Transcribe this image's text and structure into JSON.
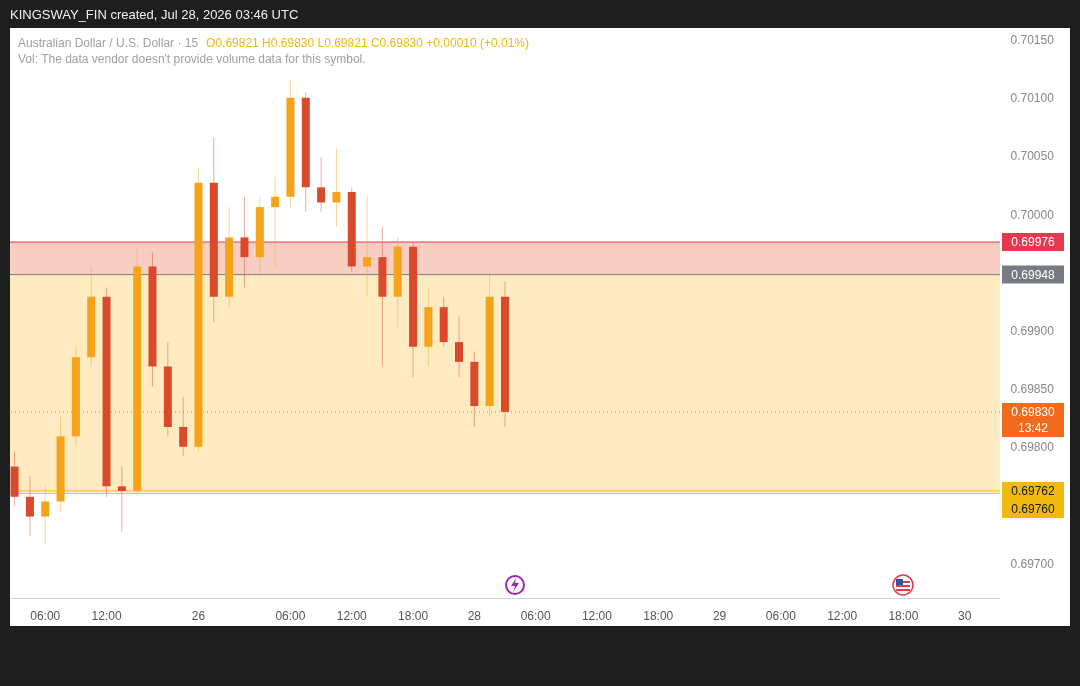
{
  "chart_data": {
    "type": "candlestick",
    "title": "Australian Dollar / U.S. Dollar · 15",
    "subtitle": "O0.69821 H0.69830 L0.69821 C0.69830 +0.00010 (+0.01%)",
    "annotations": [
      "KINGSWAY_FIN created, Jul 28, 2026 03:46 UTC",
      "Vol: The data vendor doesn't provide volume data for this symbol."
    ],
    "categories": [
      null,
      null,
      "06:00",
      null,
      null,
      null,
      "12:00",
      null,
      null,
      null,
      null,
      null,
      "26",
      null,
      null,
      null,
      null,
      null,
      "06:00",
      null,
      null,
      null,
      "12:00",
      null,
      null,
      null,
      "18:00",
      null,
      null,
      null,
      "28",
      null,
      null,
      null,
      "06:00",
      null,
      null,
      null,
      "12:00",
      null,
      null,
      null,
      "18:00",
      null,
      null,
      null,
      "29",
      null,
      null,
      null,
      "06:00",
      null,
      null,
      null,
      "12:00",
      null,
      null,
      null,
      "18:00",
      null,
      null,
      null,
      "30",
      null,
      null
    ],
    "ohlc": [
      [
        0.69783,
        0.69796,
        0.69749,
        0.69757
      ],
      [
        0.69757,
        0.69775,
        0.69723,
        0.6974
      ],
      [
        0.6974,
        0.69766,
        0.69716,
        0.69753
      ],
      [
        0.69753,
        0.69826,
        0.69745,
        0.69809
      ],
      [
        0.69809,
        0.69886,
        0.698,
        0.69877
      ],
      [
        0.69877,
        0.69955,
        0.69869,
        0.69929
      ],
      [
        0.69929,
        0.69937,
        0.69757,
        0.69766
      ],
      [
        0.69766,
        0.69783,
        0.69727,
        0.69762
      ],
      [
        0.69762,
        0.69972,
        0.69758,
        0.69955
      ],
      [
        0.69955,
        0.69967,
        0.69852,
        0.69869
      ],
      [
        0.69869,
        0.6989,
        0.69809,
        0.69817
      ],
      [
        0.69817,
        0.69843,
        0.69792,
        0.698
      ],
      [
        0.698,
        0.7004,
        0.69796,
        0.70027
      ],
      [
        0.70027,
        0.70066,
        0.69907,
        0.69929
      ],
      [
        0.69929,
        0.70006,
        0.6992,
        0.6998
      ],
      [
        0.6998,
        0.70015,
        0.69937,
        0.69963
      ],
      [
        0.69963,
        0.70015,
        0.69946,
        0.70006
      ],
      [
        0.70006,
        0.70032,
        0.69955,
        0.70015
      ],
      [
        0.70015,
        0.70115,
        0.70006,
        0.701
      ],
      [
        0.701,
        0.70105,
        0.70002,
        0.70023
      ],
      [
        0.70023,
        0.70049,
        0.70002,
        0.7001
      ],
      [
        0.7001,
        0.70057,
        0.69989,
        0.70019
      ],
      [
        0.70019,
        0.70023,
        0.6995,
        0.69955
      ],
      [
        0.69955,
        0.70015,
        0.69929,
        0.69963
      ],
      [
        0.69963,
        0.69989,
        0.69869,
        0.69929
      ],
      [
        0.69929,
        0.6998,
        0.69903,
        0.69972
      ],
      [
        0.69972,
        0.69976,
        0.6986,
        0.69886
      ],
      [
        0.69886,
        0.69937,
        0.69869,
        0.6992
      ],
      [
        0.6992,
        0.69929,
        0.69886,
        0.6989
      ],
      [
        0.6989,
        0.69912,
        0.6986,
        0.69873
      ],
      [
        0.69873,
        0.69882,
        0.69817,
        0.69835
      ],
      [
        0.69835,
        0.6995,
        0.69826,
        0.69929
      ],
      [
        0.69929,
        0.69942,
        0.69817,
        0.6983
      ],
      null,
      null,
      null,
      null,
      null,
      null,
      null,
      null,
      null,
      null,
      null,
      null,
      null,
      null,
      null,
      null,
      null,
      null,
      null,
      null,
      null,
      null,
      null,
      null,
      null,
      null,
      null,
      null,
      null,
      null,
      null,
      null
    ],
    "colors": [
      "#d84a2b",
      "#d84a2b",
      "#f5a31b",
      "#f5a31b",
      "#f5a31b",
      "#f5a31b",
      "#d84a2b",
      "#d84a2b",
      "#f5a31b",
      "#d84a2b",
      "#d84a2b",
      "#d84a2b",
      "#f5a31b",
      "#d84a2b",
      "#f5a31b",
      "#d84a2b",
      "#f5a31b",
      "#f5a31b",
      "#f5a31b",
      "#d84a2b",
      "#d84a2b",
      "#f5a31b",
      "#d84a2b",
      "#f5a31b",
      "#d84a2b",
      "#f5a31b",
      "#d84a2b",
      "#f5a31b",
      "#d84a2b",
      "#d84a2b",
      "#d84a2b",
      "#f5a31b",
      "#d84a2b",
      null,
      null,
      null,
      null,
      null,
      null,
      null,
      null,
      null,
      null,
      null,
      null,
      null,
      null,
      null,
      null,
      null,
      null,
      null,
      null,
      null,
      null,
      null,
      null,
      null,
      null,
      null,
      null,
      null,
      null,
      null,
      null
    ],
    "ylim": [
      0.6967,
      0.7016
    ],
    "yticks": [
      {
        "value": 0.697,
        "label": "0.69700"
      },
      {
        "value": 0.698,
        "label": "0.69800"
      },
      {
        "value": 0.6985,
        "label": "0.69850"
      },
      {
        "value": 0.699,
        "label": "0.69900"
      },
      {
        "value": 0.7,
        "label": "0.70000"
      },
      {
        "value": 0.7005,
        "label": "0.70050"
      },
      {
        "value": 0.701,
        "label": "0.70100"
      },
      {
        "value": 0.7015,
        "label": "0.70150"
      }
    ],
    "bands": [
      {
        "axis": "y",
        "from": 0.69948,
        "to": 0.69976,
        "color": "#f7b9a8"
      },
      {
        "axis": "y",
        "from": 0.69762,
        "to": 0.69948,
        "color": "#fde3a7"
      }
    ],
    "ref_lines": [
      {
        "axis": "y",
        "value": 0.69976,
        "label": "0.69976",
        "color": "#e5394f",
        "line_style": "solid"
      },
      {
        "axis": "y",
        "value": 0.69948,
        "label": "0.69948",
        "color": "#787b86",
        "line_style": "solid"
      },
      {
        "axis": "y",
        "value": 0.6983,
        "label": "0.69830\n13:42",
        "color": "#f26b1d",
        "line_style": "dotted"
      },
      {
        "axis": "y",
        "value": 0.69762,
        "label": "0.69762",
        "color": "#f0b90b",
        "line_style": "solid"
      },
      {
        "axis": "y",
        "value": 0.6976,
        "label": "0.69760",
        "color": "#f0b90b",
        "line_style": "solid"
      }
    ]
  }
}
